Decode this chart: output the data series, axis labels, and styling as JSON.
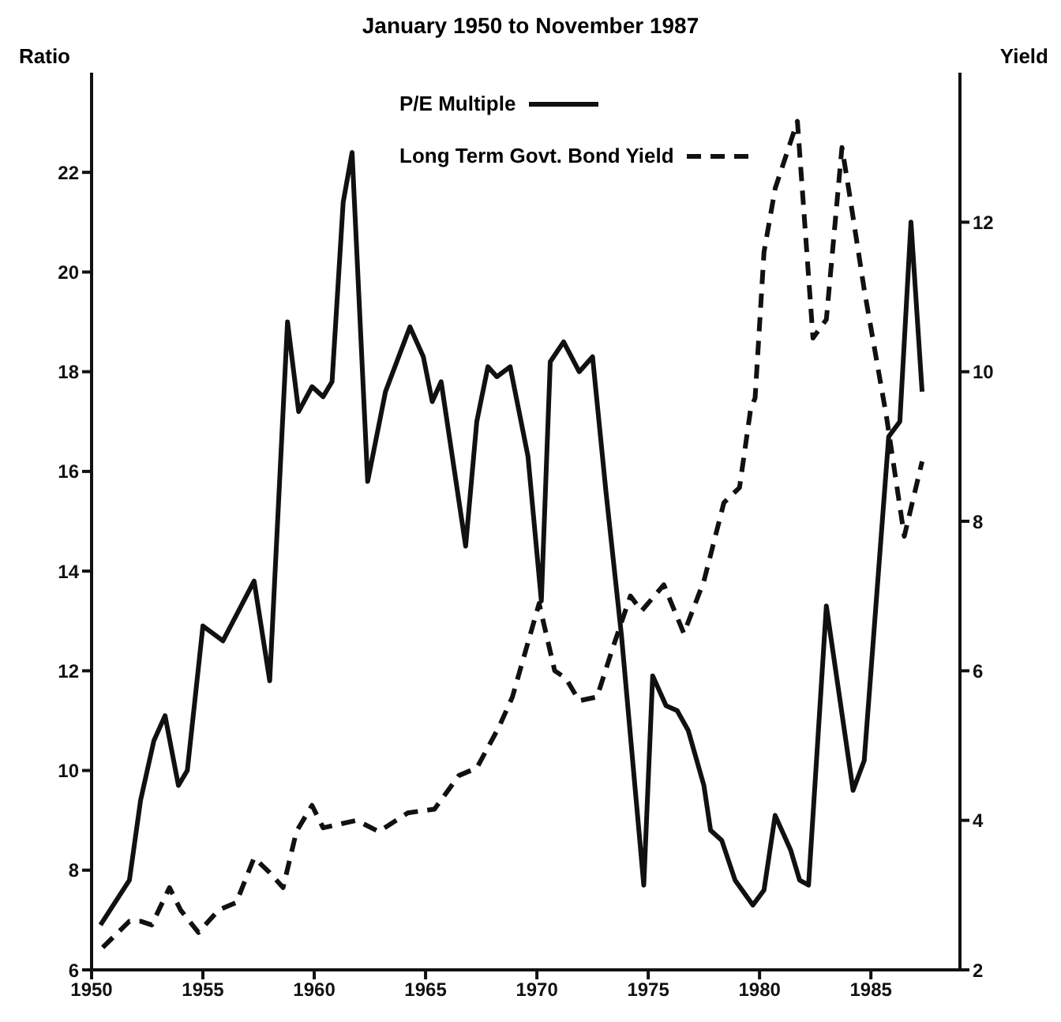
{
  "chart_data": {
    "type": "line",
    "title": "January 1950 to November 1987",
    "ylabel": "Ratio",
    "y2label": "Yield",
    "xlim": [
      1950,
      1989
    ],
    "xticks": [
      1950,
      1955,
      1960,
      1965,
      1970,
      1975,
      1980,
      1985
    ],
    "ylim": [
      6,
      24
    ],
    "yticks": [
      6,
      8,
      10,
      12,
      14,
      16,
      18,
      20,
      22
    ],
    "y2lim": [
      2,
      14
    ],
    "y2ticks": [
      2,
      4,
      6,
      8,
      10,
      12
    ],
    "legend": "top",
    "marker": "none",
    "series": [
      {
        "name": "P/E Multiple",
        "color": "#111111",
        "line_style": "solid",
        "x": [
          1950.4,
          1951.7,
          1952.2,
          1952.8,
          1953.3,
          1953.9,
          1954.3,
          1955,
          1955.9,
          1957.3,
          1958,
          1958.8,
          1959.3,
          1959.9,
          1960.4,
          1960.8,
          1961.3,
          1961.7,
          1962.4,
          1963.2,
          1964.3,
          1964.9,
          1965.3,
          1965.7,
          1966.8,
          1967.3,
          1967.8,
          1968.2,
          1968.8,
          1969.6,
          1970.2,
          1970.6,
          1971.2,
          1971.9,
          1972.5,
          1973.1,
          1973.8,
          1974.8,
          1975.2,
          1975.8,
          1976.3,
          1976.8,
          1977.5,
          1977.8,
          1978.3,
          1978.9,
          1979.7,
          1980.2,
          1980.7,
          1981.4,
          1981.8,
          1982.2,
          1983,
          1984.2,
          1984.7,
          1985.8,
          1986.3,
          1986.8,
          1987.3
        ],
        "values": [
          6.9,
          7.8,
          9.4,
          10.6,
          11.1,
          9.7,
          10,
          12.9,
          12.6,
          13.8,
          11.8,
          19,
          17.2,
          17.7,
          17.5,
          17.8,
          21.4,
          22.4,
          15.8,
          17.6,
          18.9,
          18.3,
          17.4,
          17.8,
          14.5,
          17,
          18.1,
          17.9,
          18.1,
          16.3,
          13.4,
          18.2,
          18.6,
          18,
          18.3,
          15.6,
          12.7,
          7.7,
          11.9,
          11.3,
          11.2,
          10.8,
          9.7,
          8.8,
          8.6,
          7.8,
          7.3,
          7.6,
          9.1,
          8.4,
          7.8,
          7.7,
          13.3,
          9.6,
          10.2,
          16.7,
          17,
          21,
          17.6
        ]
      },
      {
        "name": "Long Term Govt. Bond Yield",
        "color": "#111111",
        "line_style": "dashed",
        "axis": "y2",
        "x": [
          1950.5,
          1951.7,
          1952.2,
          1952.7,
          1953.5,
          1954,
          1954.8,
          1955.7,
          1956.5,
          1957.3,
          1958,
          1958.6,
          1959.2,
          1959.9,
          1960.4,
          1961.9,
          1962.9,
          1964.2,
          1965.4,
          1966.5,
          1967.3,
          1968.3,
          1968.9,
          1970.1,
          1970.8,
          1971.3,
          1971.9,
          1972.7,
          1973.4,
          1974.2,
          1974.7,
          1975.7,
          1976.6,
          1977.5,
          1978.4,
          1979.1,
          1979.6,
          1979.8,
          1980.2,
          1980.7,
          1981.7,
          1982.4,
          1983,
          1983.7,
          1984,
          1984.7,
          1985.7,
          1986.5,
          1987.3
        ],
        "values": [
          2.3,
          2.65,
          2.65,
          2.6,
          3.1,
          2.8,
          2.5,
          2.8,
          2.9,
          3.5,
          3.3,
          3.1,
          3.85,
          4.2,
          3.9,
          4,
          3.85,
          4.1,
          4.15,
          4.6,
          4.7,
          5.25,
          5.65,
          6.9,
          6,
          5.9,
          5.6,
          5.65,
          6.3,
          7,
          6.8,
          7.15,
          6.5,
          7.2,
          8.25,
          8.45,
          9.5,
          9.65,
          11.6,
          12.45,
          13.35,
          10.45,
          10.7,
          13,
          12.45,
          11.1,
          9.4,
          7.8,
          8.8
        ]
      }
    ]
  }
}
